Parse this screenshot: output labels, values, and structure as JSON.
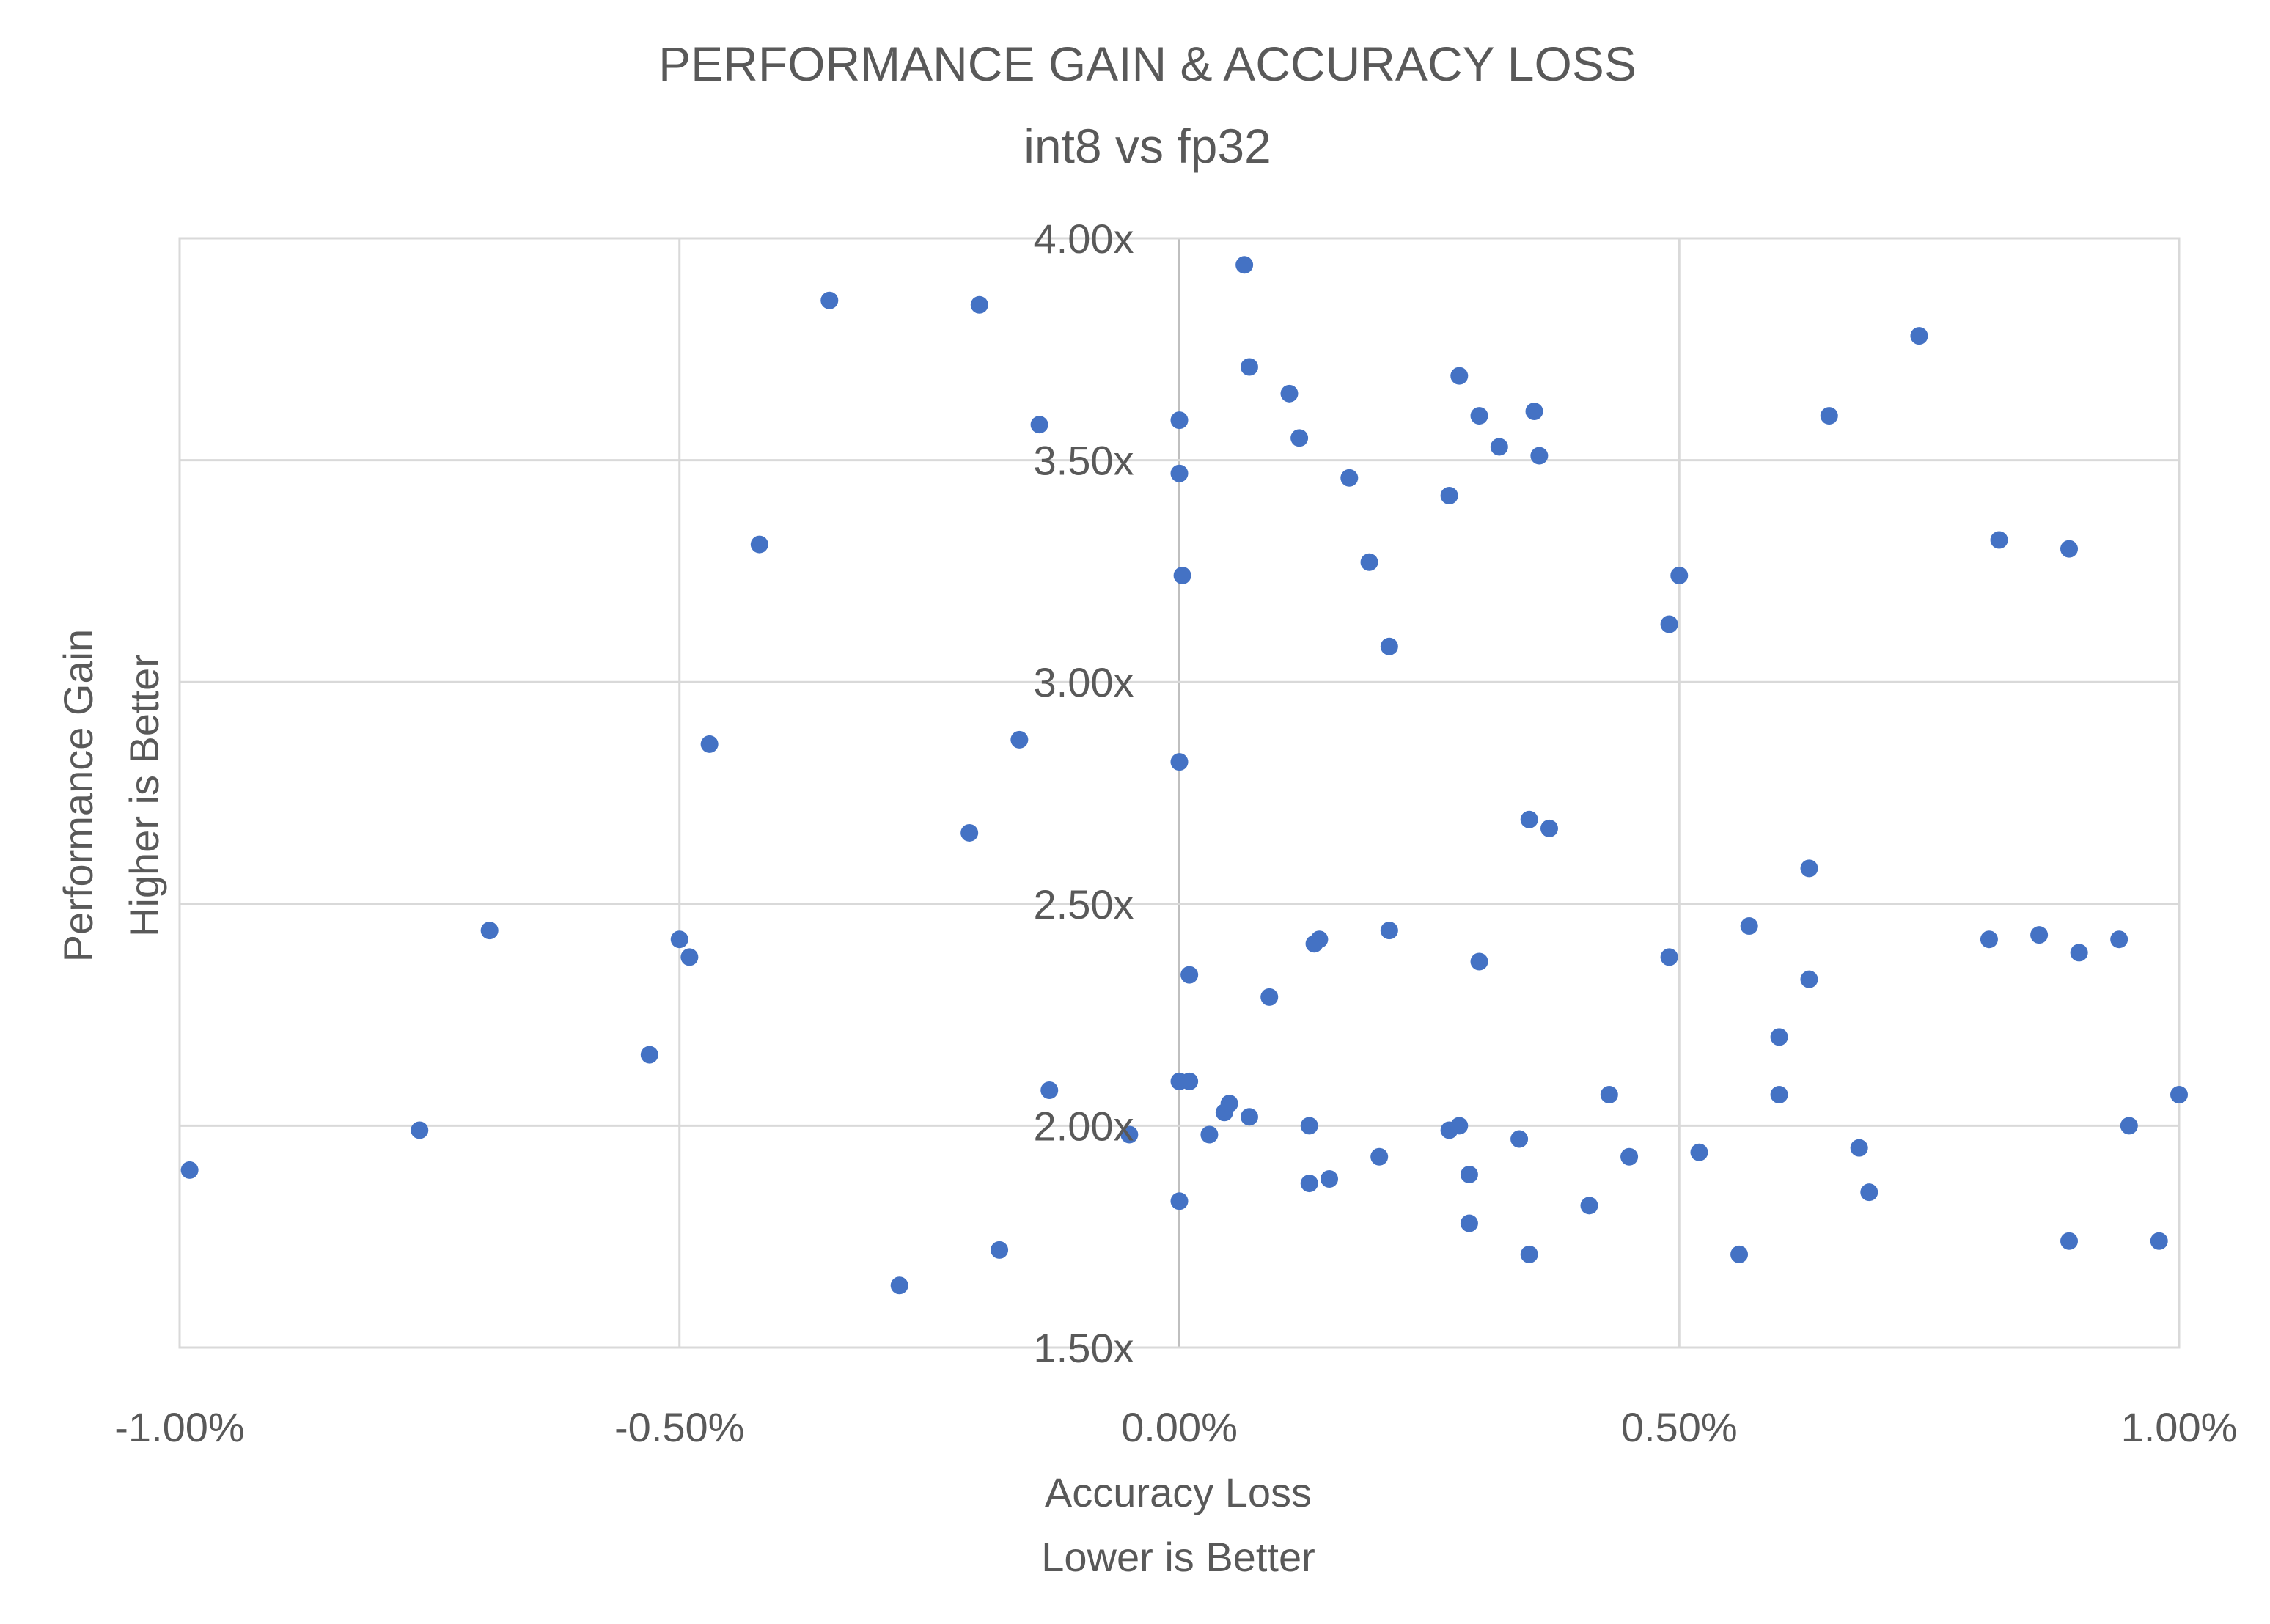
{
  "chart_data": {
    "type": "scatter",
    "title": "PERFORMANCE GAIN & ACCURACY LOSS",
    "subtitle": "int8 vs fp32",
    "xlabel": [
      "Accuracy Loss",
      "Lower is Better"
    ],
    "ylabel": [
      "Performance Gain",
      "Higher is Better"
    ],
    "xlim": [
      -0.01,
      0.01
    ],
    "ylim": [
      1.5,
      4.0
    ],
    "x_ticks": [
      -0.01,
      -0.005,
      0.0,
      0.005,
      0.01
    ],
    "x_tick_labels": [
      "-1.00%",
      "-0.50%",
      "0.00%",
      "0.50%",
      "1.00%"
    ],
    "y_ticks": [
      1.5,
      2.0,
      2.5,
      3.0,
      3.5,
      4.0
    ],
    "y_tick_labels": [
      "1.50x",
      "2.00x",
      "2.50x",
      "3.00x",
      "3.50x",
      "4.00x"
    ],
    "grid": true,
    "marker_color": "#4472C4",
    "grid_color": "#D9D9D9",
    "text_color": "#595959",
    "series": [
      {
        "points": [
          [
            -0.0099,
            1.9
          ],
          [
            -0.0076,
            1.99
          ],
          [
            -0.0069,
            2.44
          ],
          [
            -0.0053,
            2.16
          ],
          [
            -0.005,
            2.42
          ],
          [
            -0.0049,
            2.38
          ],
          [
            -0.0047,
            2.86
          ],
          [
            -0.0042,
            3.31
          ],
          [
            -0.0035,
            3.86
          ],
          [
            -0.0028,
            1.64
          ],
          [
            -0.0021,
            2.66
          ],
          [
            -0.002,
            3.85
          ],
          [
            -0.0018,
            1.72
          ],
          [
            -0.0016,
            2.87
          ],
          [
            -0.0014,
            3.58
          ],
          [
            -0.0013,
            2.08
          ],
          [
            -0.0005,
            1.98
          ],
          [
            0.0,
            3.59
          ],
          [
            0.0,
            3.47
          ],
          [
            0.0,
            2.82
          ],
          [
            0.0,
            2.1
          ],
          [
            0.0,
            1.83
          ],
          [
            3e-05,
            3.24
          ],
          [
            0.0001,
            2.34
          ],
          [
            0.0001,
            2.1
          ],
          [
            0.0003,
            1.98
          ],
          [
            0.00045,
            2.03
          ],
          [
            0.0005,
            2.05
          ],
          [
            0.00065,
            3.94
          ],
          [
            0.0007,
            3.71
          ],
          [
            0.0007,
            2.02
          ],
          [
            0.0009,
            2.29
          ],
          [
            0.0011,
            3.65
          ],
          [
            0.0012,
            3.55
          ],
          [
            0.0013,
            2.0
          ],
          [
            0.0013,
            1.87
          ],
          [
            0.00135,
            2.41
          ],
          [
            0.0014,
            2.42
          ],
          [
            0.0015,
            1.88
          ],
          [
            0.0017,
            3.46
          ],
          [
            0.0019,
            3.27
          ],
          [
            0.002,
            1.93
          ],
          [
            0.0021,
            2.44
          ],
          [
            0.0021,
            3.08
          ],
          [
            0.0027,
            1.99
          ],
          [
            0.0028,
            2.0
          ],
          [
            0.0027,
            3.42
          ],
          [
            0.0028,
            3.69
          ],
          [
            0.0029,
            1.78
          ],
          [
            0.0029,
            1.89
          ],
          [
            0.003,
            3.6
          ],
          [
            0.003,
            2.37
          ],
          [
            0.0032,
            3.53
          ],
          [
            0.0034,
            1.97
          ],
          [
            0.0035,
            2.69
          ],
          [
            0.0035,
            1.71
          ],
          [
            0.00355,
            3.61
          ],
          [
            0.0036,
            3.51
          ],
          [
            0.0037,
            2.67
          ],
          [
            0.0041,
            1.82
          ],
          [
            0.0043,
            2.07
          ],
          [
            0.0045,
            1.93
          ],
          [
            0.0049,
            3.13
          ],
          [
            0.0049,
            2.38
          ],
          [
            0.005,
            3.24
          ],
          [
            0.0052,
            1.94
          ],
          [
            0.0056,
            1.71
          ],
          [
            0.0057,
            2.45
          ],
          [
            0.006,
            2.2
          ],
          [
            0.006,
            2.07
          ],
          [
            0.0063,
            2.58
          ],
          [
            0.0063,
            2.33
          ],
          [
            0.0065,
            3.6
          ],
          [
            0.0068,
            1.95
          ],
          [
            0.0069,
            1.85
          ],
          [
            0.0074,
            3.78
          ],
          [
            0.0081,
            2.42
          ],
          [
            0.0082,
            3.32
          ],
          [
            0.0086,
            2.43
          ],
          [
            0.0089,
            1.74
          ],
          [
            0.0089,
            3.3
          ],
          [
            0.009,
            2.39
          ],
          [
            0.0094,
            2.42
          ],
          [
            0.0095,
            2.0
          ],
          [
            0.0098,
            1.74
          ],
          [
            0.01,
            2.07
          ]
        ]
      }
    ]
  }
}
